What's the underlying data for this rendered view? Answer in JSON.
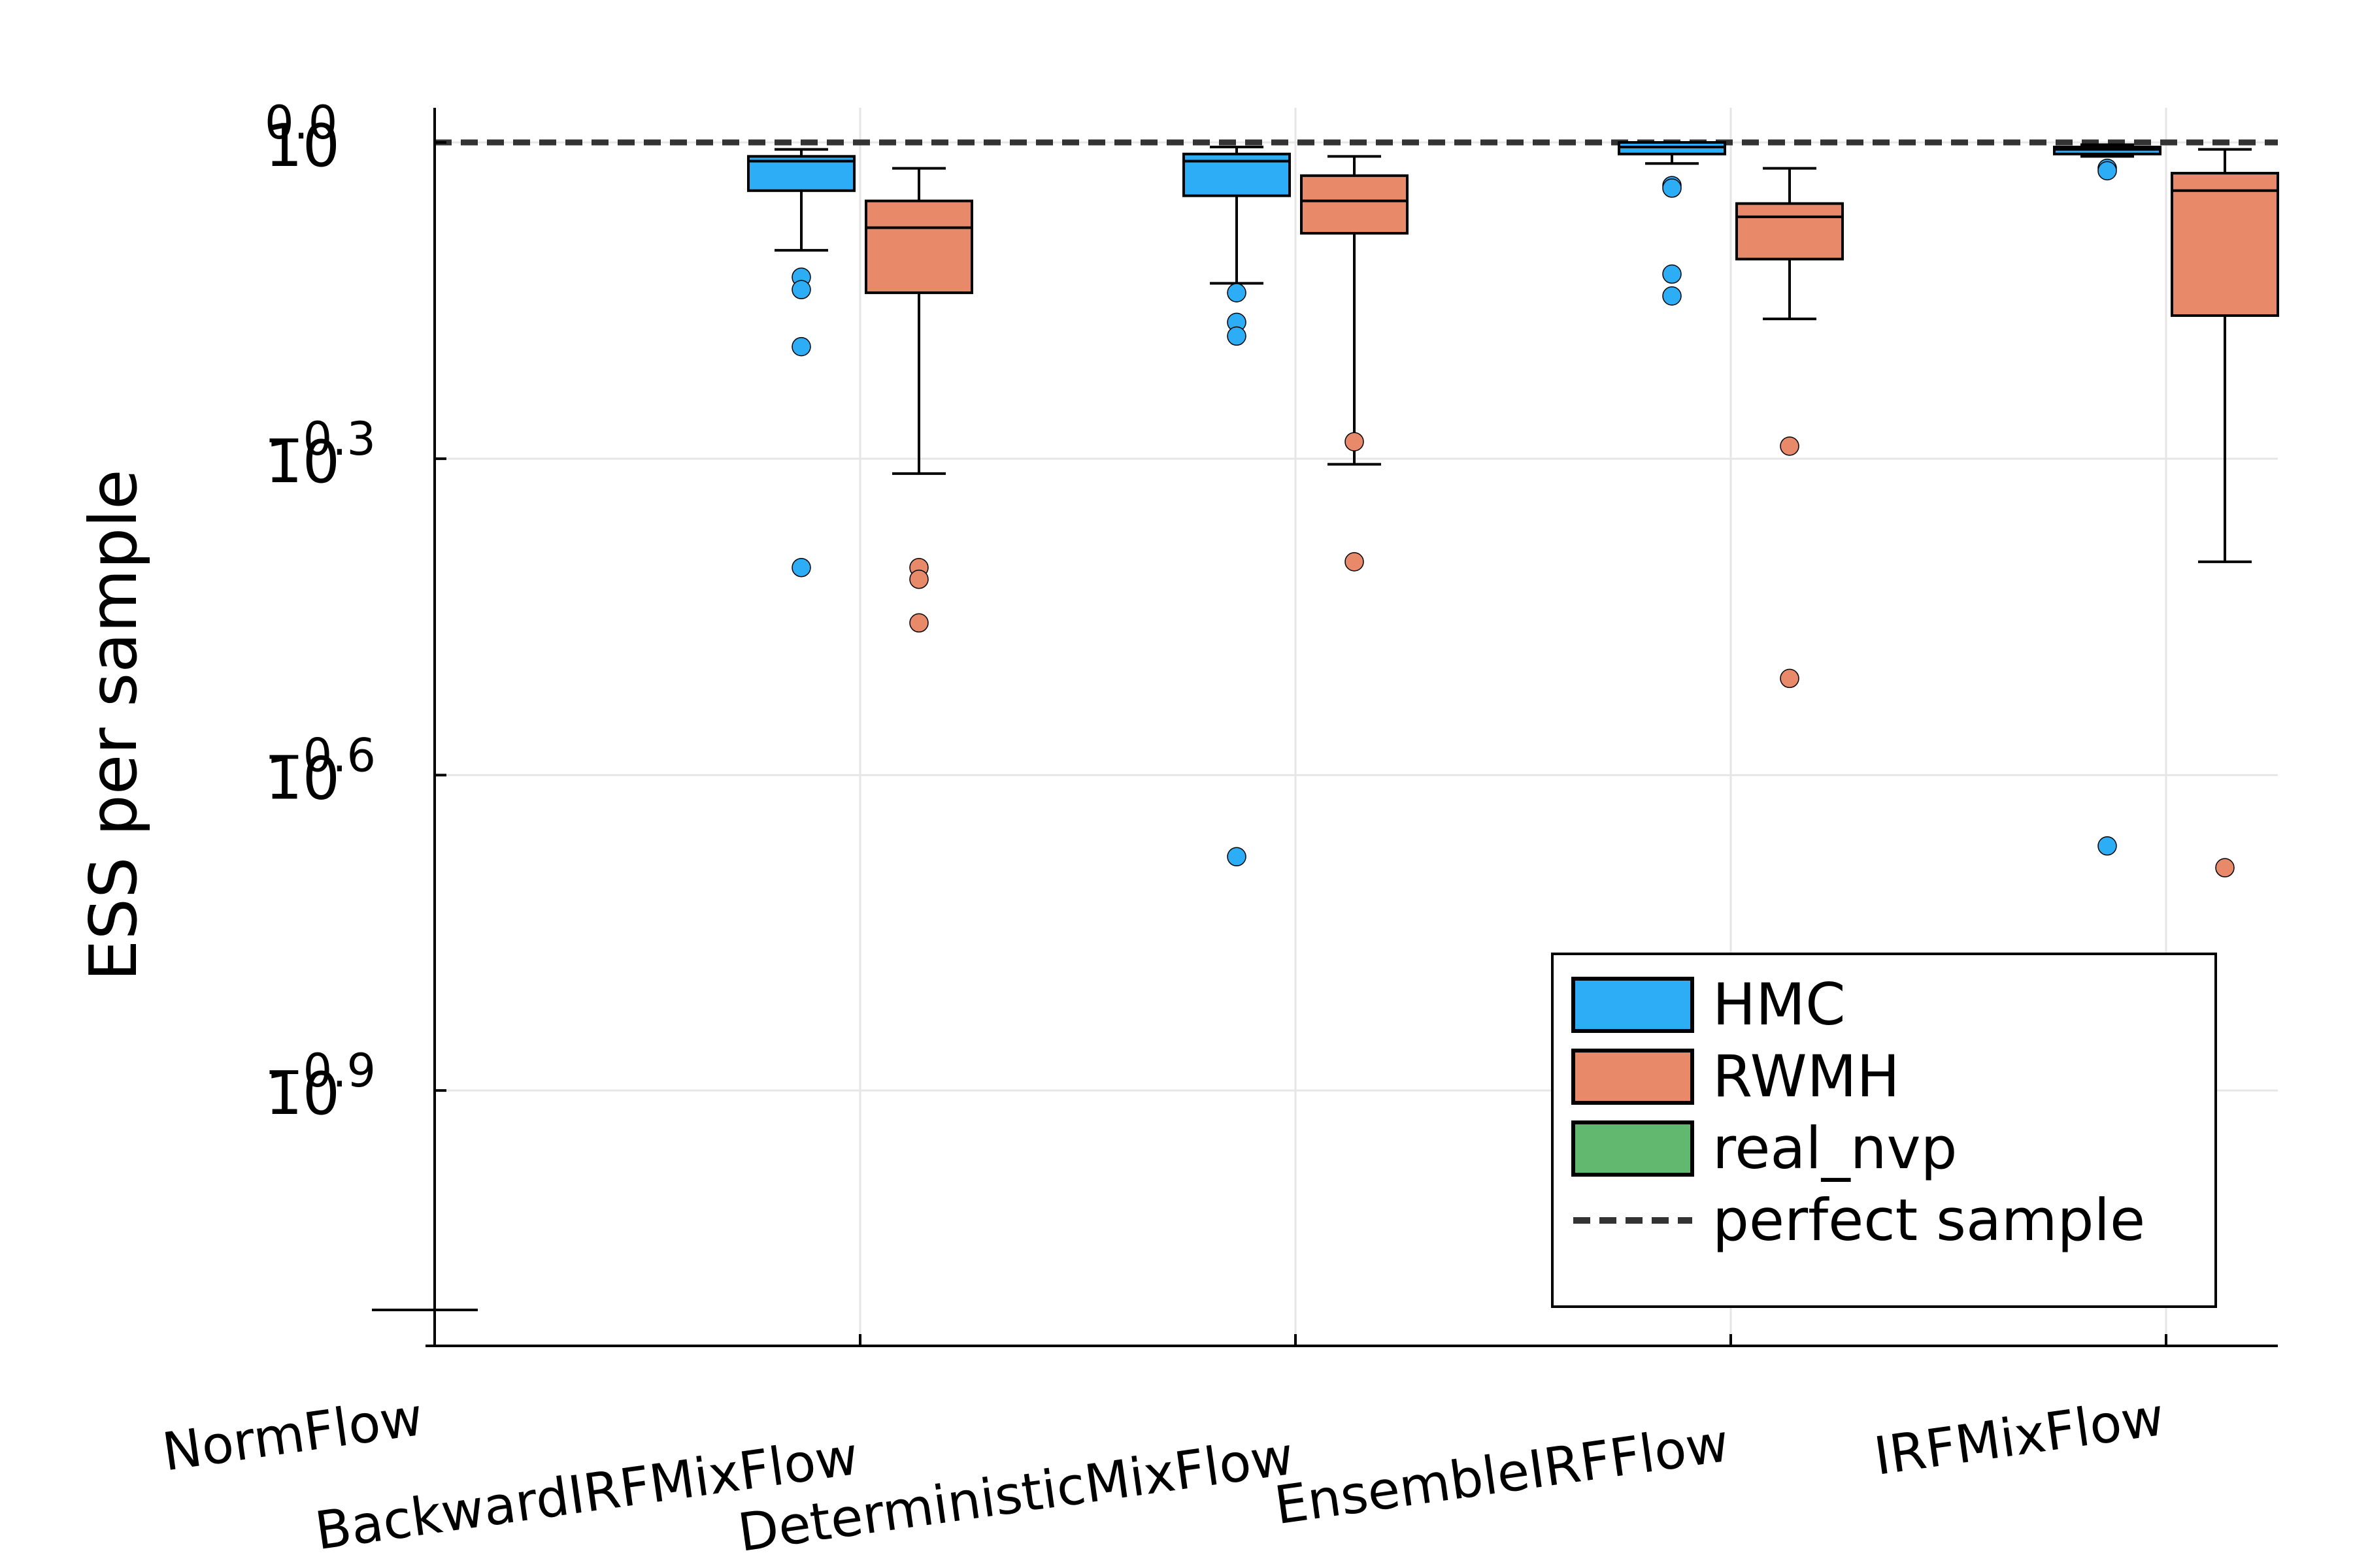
{
  "chart_data": {
    "type": "box",
    "title": "",
    "xlabel": "",
    "ylabel": "ESS per sample",
    "y_scale": "log10",
    "ylim": [
      0.07,
      1.06
    ],
    "yticks": [
      {
        "value": 1.0,
        "base": "10",
        "exp": "0.0"
      },
      {
        "value": 0.501,
        "base": "10",
        "exp": "−0.3"
      },
      {
        "value": 0.251,
        "base": "10",
        "exp": "−0.6"
      },
      {
        "value": 0.126,
        "base": "10",
        "exp": "−0.9"
      }
    ],
    "grid": true,
    "categories": [
      "NormFlow",
      "BackwardIRFMixFlow",
      "DeterministicMixFlow",
      "EnsembleIRFFlow",
      "IRFMixFlow"
    ],
    "reference_line": {
      "name": "perfect sample",
      "value": 1.0,
      "color": "#333333",
      "style": "dashed"
    },
    "legend": {
      "position": "bottom-right",
      "entries": [
        {
          "label": "HMC",
          "color": "#2EADF7",
          "kind": "box"
        },
        {
          "label": "RWMH",
          "color": "#E8896A",
          "kind": "box"
        },
        {
          "label": "real_nvp",
          "color": "#62B86E",
          "kind": "box"
        },
        {
          "label": "perfect sample",
          "color": "#333333",
          "kind": "dashed-line"
        }
      ]
    },
    "series": [
      {
        "name": "HMC",
        "color": "#2EADF7",
        "boxes": [
          null,
          {
            "whisker_low": 0.79,
            "q1": 0.9,
            "median": 0.96,
            "q3": 0.97,
            "whisker_high": 0.985,
            "outliers": [
              0.745,
              0.725,
              0.64,
              0.395
            ]
          },
          {
            "whisker_low": 0.735,
            "q1": 0.89,
            "median": 0.96,
            "q3": 0.975,
            "whisker_high": 0.99,
            "outliers": [
              0.72,
              0.675,
              0.655,
              0.21
            ]
          },
          {
            "whisker_low": 0.955,
            "q1": 0.975,
            "median": 0.99,
            "q3": 1.0,
            "whisker_high": 1.0,
            "outliers": [
              0.91,
              0.905,
              0.75,
              0.715
            ]
          },
          {
            "whisker_low": 0.97,
            "q1": 0.975,
            "median": 0.985,
            "q3": 0.99,
            "whisker_high": 0.995,
            "outliers": [
              0.945,
              0.94,
              0.215,
              0.165
            ]
          }
        ]
      },
      {
        "name": "RWMH",
        "color": "#E8896A",
        "boxes": [
          null,
          {
            "whisker_low": 0.485,
            "q1": 0.72,
            "median": 0.83,
            "q3": 0.88,
            "whisker_high": 0.945,
            "outliers": [
              0.395,
              0.385,
              0.35
            ]
          },
          {
            "whisker_low": 0.495,
            "q1": 0.82,
            "median": 0.88,
            "q3": 0.93,
            "whisker_high": 0.97,
            "outliers": [
              0.52,
              0.4
            ]
          },
          {
            "whisker_low": 0.68,
            "q1": 0.775,
            "median": 0.85,
            "q3": 0.875,
            "whisker_high": 0.945,
            "outliers": [
              0.515,
              0.31
            ]
          },
          {
            "whisker_low": 0.4,
            "q1": 0.685,
            "median": 0.9,
            "q3": 0.935,
            "whisker_high": 0.985,
            "outliers": [
              0.205
            ]
          }
        ]
      },
      {
        "name": "real_nvp",
        "color": "#62B86E",
        "boxes": [
          {
            "whisker_low": 0.078,
            "q1": 0.078,
            "median": 0.078,
            "q3": 0.078,
            "whisker_high": 0.078,
            "outliers": []
          },
          null,
          null,
          null,
          null
        ]
      }
    ]
  }
}
